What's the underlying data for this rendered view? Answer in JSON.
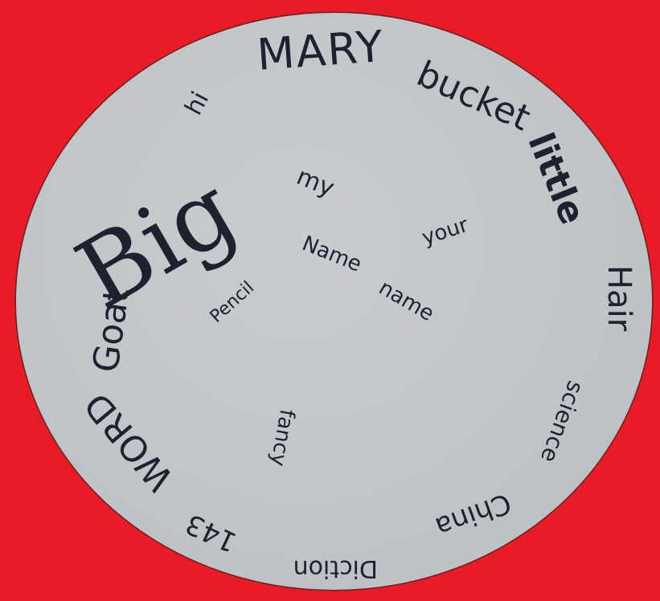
{
  "colors": {
    "background": "#e81c26",
    "paper": "#c6c9cc",
    "ink": "#1d2130"
  },
  "words": {
    "mary": "MARY",
    "bucket": "bucket",
    "little": "little",
    "hair": "Hair",
    "science": "science",
    "china": "China",
    "diction": "Diction",
    "n143": "143",
    "word": "WORD",
    "goat": "Goat",
    "big": "Big",
    "hi": "hi",
    "my": "my",
    "your": "your",
    "name_cap": "Name",
    "name_low": "name",
    "pencil": "Pencil",
    "fancy": "fancy"
  }
}
